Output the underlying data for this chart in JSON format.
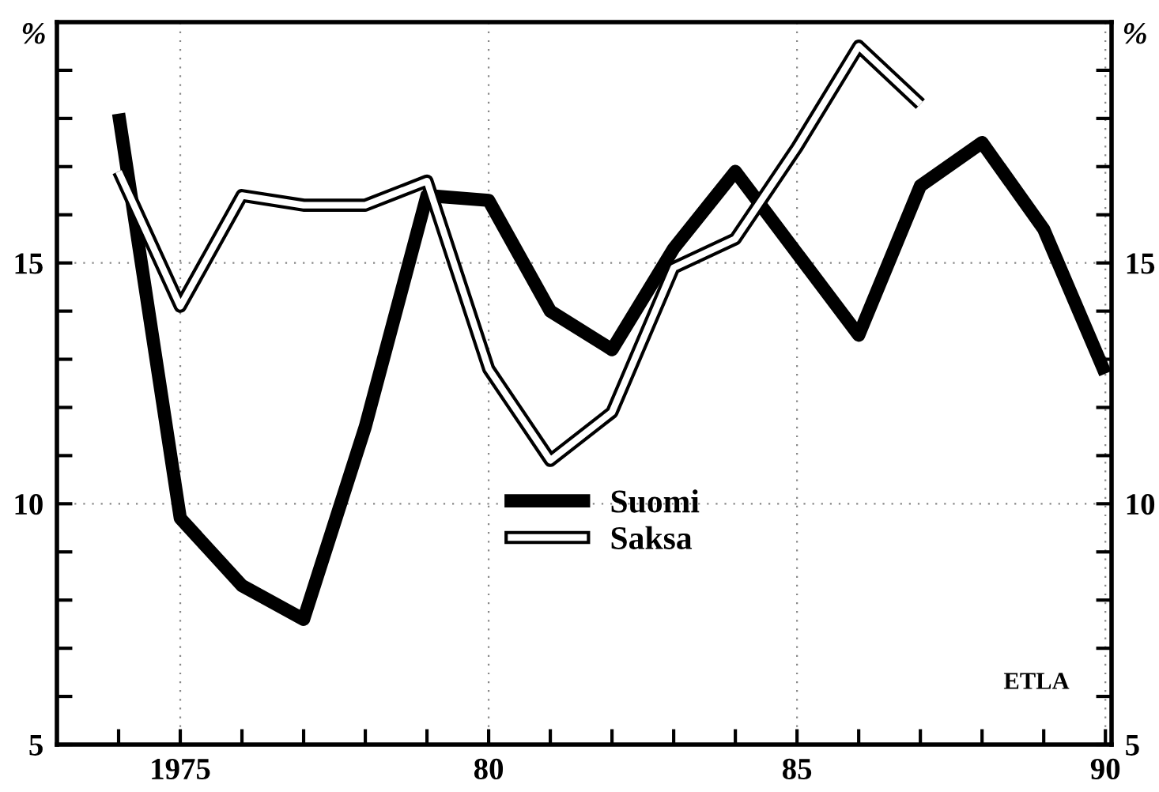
{
  "chart_data": {
    "type": "line",
    "x": [
      1974,
      1975,
      1976,
      1977,
      1978,
      1979,
      1980,
      1981,
      1982,
      1983,
      1984,
      1985,
      1986,
      1987,
      1988,
      1989,
      1990
    ],
    "series": [
      {
        "name": "Suomi",
        "color": "#000000",
        "values": [
          18.1,
          9.7,
          8.3,
          7.6,
          11.6,
          16.4,
          16.3,
          14.0,
          13.2,
          15.3,
          16.9,
          15.2,
          13.5,
          16.6,
          17.5,
          15.7,
          12.7
        ]
      },
      {
        "name": "Saksa",
        "color": "#000000",
        "values": [
          16.9,
          14.1,
          16.4,
          16.2,
          16.2,
          16.7,
          12.8,
          10.9,
          11.9,
          14.9,
          15.5,
          17.4,
          19.5,
          18.3,
          null,
          null,
          null
        ]
      }
    ],
    "xlim": [
      1973,
      1990.1
    ],
    "xticks": [
      {
        "value": 1974,
        "label": null
      },
      {
        "value": 1975,
        "label": "1975"
      },
      {
        "value": 1976,
        "label": null
      },
      {
        "value": 1977,
        "label": null
      },
      {
        "value": 1978,
        "label": null
      },
      {
        "value": 1979,
        "label": null
      },
      {
        "value": 1980,
        "label": "80"
      },
      {
        "value": 1981,
        "label": null
      },
      {
        "value": 1982,
        "label": null
      },
      {
        "value": 1983,
        "label": null
      },
      {
        "value": 1984,
        "label": null
      },
      {
        "value": 1985,
        "label": "85"
      },
      {
        "value": 1986,
        "label": null
      },
      {
        "value": 1987,
        "label": null
      },
      {
        "value": 1988,
        "label": null
      },
      {
        "value": 1989,
        "label": null
      },
      {
        "value": 1990,
        "label": "90"
      }
    ],
    "ylim": [
      5,
      20
    ],
    "yticks": [
      5,
      {
        "value": 6,
        "label": null
      },
      {
        "value": 7,
        "label": null
      },
      {
        "value": 8,
        "label": null
      },
      {
        "value": 9,
        "label": null
      },
      10,
      {
        "value": 11,
        "label": null
      },
      {
        "value": 12,
        "label": null
      },
      {
        "value": 13,
        "label": null
      },
      {
        "value": 14,
        "label": null
      },
      15,
      {
        "value": 16,
        "label": null
      },
      {
        "value": 17,
        "label": null
      },
      {
        "value": 18,
        "label": null
      },
      {
        "value": 19,
        "label": null
      }
    ],
    "y2lim": [
      5,
      20
    ],
    "y2ticks": [
      5,
      {
        "value": 6,
        "label": null
      },
      {
        "value": 7,
        "label": null
      },
      {
        "value": 8,
        "label": null
      },
      {
        "value": 9,
        "label": null
      },
      10,
      {
        "value": 11,
        "label": null
      },
      {
        "value": 12,
        "label": null
      },
      {
        "value": 13,
        "label": null
      },
      {
        "value": 14,
        "label": null
      },
      15,
      {
        "value": 16,
        "label": null
      },
      {
        "value": 17,
        "label": null
      },
      {
        "value": 18,
        "label": null
      },
      {
        "value": 19,
        "label": null
      }
    ],
    "ylabel": "%",
    "y2label": "%",
    "annotations": [
      "ETLA"
    ],
    "grid": true,
    "legend": "bottom",
    "line_style": "solid",
    "marker": "none"
  }
}
